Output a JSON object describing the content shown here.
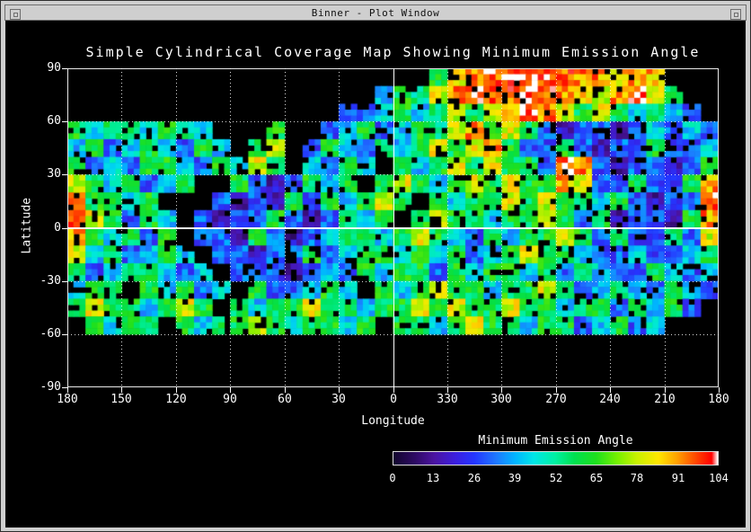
{
  "window": {
    "title": "Binner - Plot Window"
  },
  "chart_data": {
    "type": "heatmap",
    "title": "Simple Cylindrical Coverage Map Showing Minimum Emission Angle",
    "xlabel": "Longitude",
    "ylabel": "Latitude",
    "x_tick_labels": [
      "180",
      "150",
      "120",
      "90",
      "60",
      "30",
      "0",
      "330",
      "300",
      "270",
      "240",
      "210",
      "180"
    ],
    "y_tick_labels": [
      "90",
      "60",
      "30",
      "0",
      "-30",
      "-60",
      "-90"
    ],
    "grid_step_deg": 30,
    "gridline_style": "dotted",
    "zero_lines": "solid white lines at longitude 0 and latitude 0",
    "background": "#000000",
    "text_color": "#ffffff",
    "colorbar": {
      "title": "Minimum Emission Angle",
      "tick_labels": [
        "0",
        "13",
        "26",
        "39",
        "52",
        "65",
        "78",
        "91",
        "104"
      ],
      "min": 0,
      "max": 104,
      "stops": [
        {
          "v": 0,
          "c": "#12062e"
        },
        {
          "v": 7,
          "c": "#2e0a64"
        },
        {
          "v": 13,
          "c": "#4b14a0"
        },
        {
          "v": 20,
          "c": "#3b1fe0"
        },
        {
          "v": 26,
          "c": "#2436ff"
        },
        {
          "v": 33,
          "c": "#1e78ff"
        },
        {
          "v": 39,
          "c": "#00b4ff"
        },
        {
          "v": 45,
          "c": "#00e6e6"
        },
        {
          "v": 52,
          "c": "#00f0a0"
        },
        {
          "v": 58,
          "c": "#00e050"
        },
        {
          "v": 65,
          "c": "#1ee01e"
        },
        {
          "v": 72,
          "c": "#78f000"
        },
        {
          "v": 78,
          "c": "#c8f000"
        },
        {
          "v": 85,
          "c": "#ffe600"
        },
        {
          "v": 91,
          "c": "#ffa000"
        },
        {
          "v": 97,
          "c": "#ff4600"
        },
        {
          "v": 102,
          "c": "#ff0000"
        },
        {
          "v": 104,
          "c": "#ffffff"
        }
      ]
    },
    "grid": {
      "lon_bins": 36,
      "lat_bins": 18,
      "lat_range": [
        90,
        -90
      ],
      "note": "approximate 10-degree binned minimum emission angle values; null = no coverage (black)",
      "values": [
        [
          null,
          null,
          null,
          null,
          null,
          null,
          null,
          null,
          null,
          null,
          null,
          null,
          null,
          null,
          null,
          null,
          null,
          null,
          null,
          null,
          60,
          80,
          91,
          97,
          100,
          100,
          97,
          94,
          91,
          91,
          85,
          91,
          88,
          null,
          null,
          null
        ],
        [
          null,
          null,
          null,
          null,
          null,
          null,
          null,
          null,
          null,
          null,
          null,
          null,
          null,
          null,
          null,
          null,
          null,
          42,
          60,
          55,
          80,
          91,
          100,
          100,
          94,
          100,
          97,
          91,
          88,
          80,
          91,
          97,
          80,
          60,
          null,
          null
        ],
        [
          null,
          null,
          null,
          null,
          null,
          null,
          null,
          null,
          null,
          null,
          null,
          null,
          null,
          null,
          null,
          30,
          30,
          42,
          60,
          42,
          55,
          80,
          60,
          80,
          91,
          100,
          91,
          80,
          60,
          80,
          60,
          42,
          60,
          42,
          30,
          null
        ],
        [
          60,
          42,
          55,
          60,
          42,
          60,
          55,
          42,
          null,
          null,
          null,
          60,
          null,
          null,
          30,
          42,
          60,
          30,
          42,
          60,
          55,
          80,
          91,
          60,
          80,
          60,
          30,
          15,
          30,
          30,
          15,
          30,
          42,
          30,
          42,
          30
        ],
        [
          42,
          60,
          30,
          42,
          60,
          42,
          30,
          60,
          42,
          null,
          60,
          80,
          null,
          30,
          60,
          42,
          30,
          60,
          42,
          60,
          80,
          60,
          80,
          91,
          60,
          30,
          30,
          60,
          30,
          15,
          30,
          30,
          60,
          30,
          30,
          42
        ],
        [
          60,
          30,
          42,
          30,
          60,
          60,
          42,
          30,
          60,
          42,
          80,
          60,
          null,
          42,
          30,
          60,
          42,
          null,
          60,
          42,
          60,
          80,
          60,
          80,
          60,
          60,
          30,
          100,
          91,
          30,
          15,
          30,
          30,
          15,
          30,
          60
        ],
        [
          80,
          60,
          42,
          60,
          30,
          42,
          60,
          null,
          null,
          60,
          30,
          15,
          30,
          60,
          42,
          60,
          null,
          60,
          80,
          60,
          42,
          60,
          80,
          60,
          80,
          60,
          60,
          91,
          80,
          30,
          30,
          60,
          30,
          30,
          60,
          91
        ],
        [
          91,
          60,
          60,
          42,
          60,
          null,
          null,
          null,
          30,
          15,
          30,
          15,
          60,
          30,
          60,
          42,
          60,
          80,
          60,
          null,
          60,
          42,
          60,
          60,
          80,
          60,
          80,
          60,
          60,
          42,
          60,
          30,
          15,
          30,
          30,
          100
        ],
        [
          100,
          80,
          60,
          30,
          60,
          42,
          null,
          30,
          15,
          30,
          30,
          60,
          30,
          15,
          30,
          60,
          42,
          60,
          null,
          60,
          80,
          60,
          60,
          42,
          60,
          60,
          80,
          60,
          30,
          60,
          15,
          30,
          30,
          15,
          60,
          91
        ],
        [
          91,
          60,
          42,
          60,
          30,
          60,
          null,
          30,
          30,
          15,
          60,
          30,
          15,
          30,
          42,
          60,
          60,
          42,
          60,
          80,
          60,
          42,
          30,
          60,
          42,
          60,
          60,
          80,
          60,
          30,
          60,
          30,
          30,
          60,
          30,
          80
        ],
        [
          80,
          42,
          60,
          30,
          42,
          60,
          42,
          null,
          30,
          30,
          15,
          30,
          30,
          60,
          30,
          42,
          60,
          60,
          42,
          60,
          42,
          60,
          30,
          42,
          60,
          80,
          60,
          60,
          42,
          30,
          30,
          42,
          30,
          30,
          42,
          60
        ],
        [
          60,
          30,
          42,
          60,
          60,
          42,
          30,
          42,
          null,
          30,
          30,
          30,
          15,
          30,
          42,
          30,
          60,
          42,
          60,
          60,
          30,
          60,
          42,
          60,
          60,
          42,
          60,
          30,
          60,
          42,
          30,
          30,
          60,
          42,
          30,
          42
        ],
        [
          42,
          60,
          60,
          null,
          60,
          42,
          60,
          30,
          42,
          null,
          60,
          30,
          30,
          42,
          60,
          42,
          null,
          60,
          42,
          60,
          80,
          60,
          60,
          42,
          60,
          60,
          80,
          60,
          30,
          42,
          60,
          42,
          30,
          60,
          42,
          30
        ],
        [
          60,
          80,
          60,
          60,
          42,
          60,
          80,
          60,
          null,
          60,
          42,
          60,
          60,
          80,
          60,
          60,
          42,
          60,
          60,
          80,
          60,
          80,
          60,
          60,
          80,
          60,
          60,
          42,
          60,
          60,
          30,
          60,
          42,
          60,
          30,
          null
        ],
        [
          null,
          60,
          42,
          60,
          60,
          null,
          60,
          42,
          60,
          60,
          80,
          60,
          42,
          60,
          60,
          42,
          60,
          null,
          60,
          60,
          42,
          60,
          80,
          60,
          60,
          42,
          60,
          60,
          30,
          42,
          60,
          30,
          42,
          null,
          null,
          null
        ],
        [
          null,
          null,
          null,
          null,
          null,
          null,
          null,
          null,
          null,
          null,
          null,
          null,
          null,
          null,
          null,
          null,
          null,
          null,
          null,
          null,
          null,
          null,
          null,
          null,
          null,
          null,
          null,
          null,
          null,
          null,
          null,
          null,
          null,
          null,
          null,
          null
        ],
        [
          null,
          null,
          null,
          null,
          null,
          null,
          null,
          null,
          null,
          null,
          null,
          null,
          null,
          null,
          null,
          null,
          null,
          null,
          null,
          null,
          null,
          null,
          null,
          null,
          null,
          null,
          null,
          null,
          null,
          null,
          null,
          null,
          null,
          null,
          null,
          null
        ],
        [
          null,
          null,
          null,
          null,
          null,
          null,
          null,
          null,
          null,
          null,
          null,
          null,
          null,
          null,
          null,
          null,
          null,
          null,
          null,
          null,
          null,
          null,
          null,
          null,
          null,
          null,
          null,
          null,
          null,
          null,
          null,
          null,
          null,
          null,
          null,
          null
        ]
      ]
    }
  }
}
